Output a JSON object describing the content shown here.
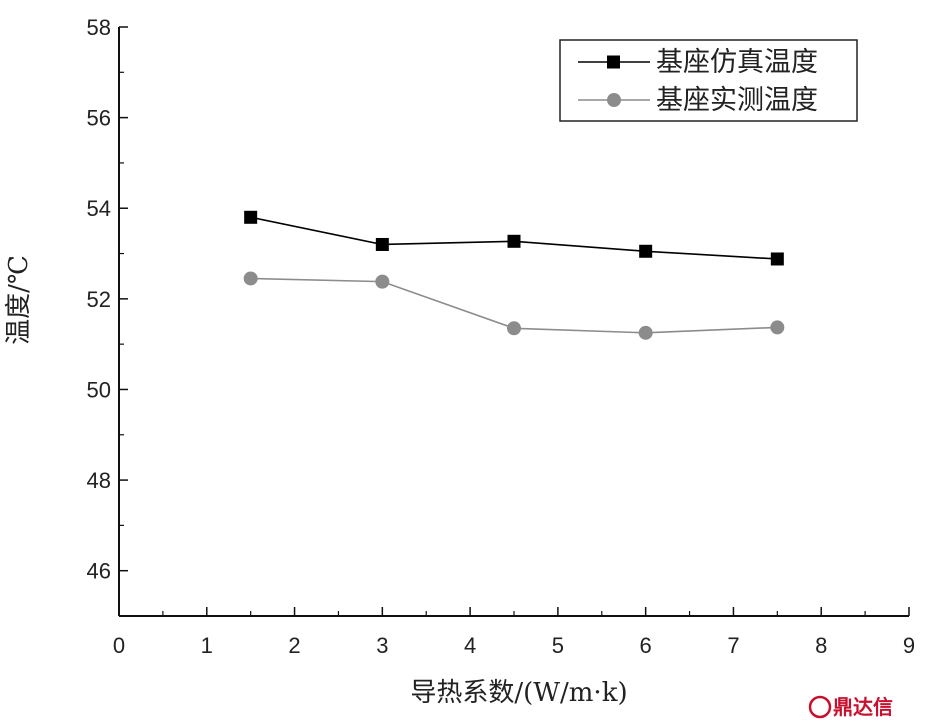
{
  "chart_data": {
    "type": "line",
    "xlabel": "导热系数/(W/m·k)",
    "ylabel": "温度/℃",
    "xlim": [
      0,
      9
    ],
    "ylim": [
      45,
      58
    ],
    "x_ticks": [
      "0",
      "1",
      "2",
      "3",
      "4",
      "5",
      "6",
      "7",
      "8",
      "9"
    ],
    "y_ticks": [
      "46",
      "48",
      "50",
      "52",
      "54",
      "56",
      "58"
    ],
    "grid": false,
    "legend_position": "top-right",
    "x": [
      1.5,
      3,
      4.5,
      6,
      7.5
    ],
    "series": [
      {
        "name": "基座仿真温度",
        "marker": "square",
        "color": "#000000",
        "values": [
          53.8,
          53.2,
          53.27,
          53.05,
          52.88
        ]
      },
      {
        "name": "基座实测温度",
        "marker": "circle",
        "color": "#8c8c8c",
        "values": [
          52.45,
          52.38,
          51.35,
          51.25,
          51.37
        ]
      }
    ]
  },
  "watermark": {
    "text": "鼎达信",
    "color": "#c8102e"
  }
}
